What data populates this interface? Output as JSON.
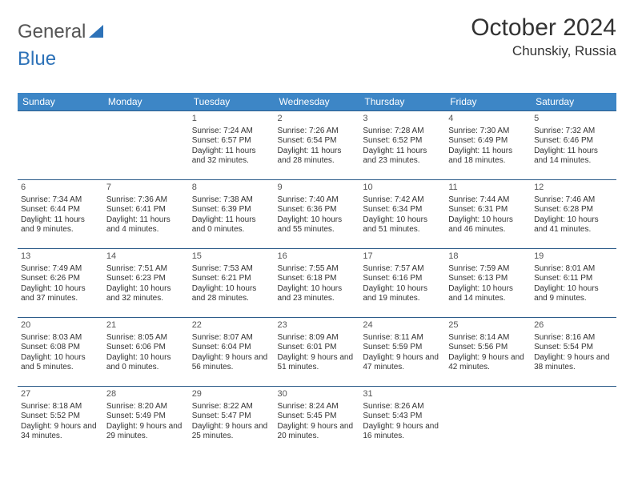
{
  "brand": {
    "part1": "General",
    "part2": "Blue"
  },
  "title": "October 2024",
  "location": "Chunskiy, Russia",
  "weekdays": [
    "Sunday",
    "Monday",
    "Tuesday",
    "Wednesday",
    "Thursday",
    "Friday",
    "Saturday"
  ],
  "colors": {
    "header_bg": "#3d86c6",
    "header_text": "#ffffff",
    "cell_border": "#2d5c8a",
    "body_text": "#333333",
    "brand_blue": "#2d72b8",
    "brand_gray": "#555555"
  },
  "cells": [
    [
      null,
      null,
      {
        "day": "1",
        "sunrise": "Sunrise: 7:24 AM",
        "sunset": "Sunset: 6:57 PM",
        "daylight": "Daylight: 11 hours and 32 minutes."
      },
      {
        "day": "2",
        "sunrise": "Sunrise: 7:26 AM",
        "sunset": "Sunset: 6:54 PM",
        "daylight": "Daylight: 11 hours and 28 minutes."
      },
      {
        "day": "3",
        "sunrise": "Sunrise: 7:28 AM",
        "sunset": "Sunset: 6:52 PM",
        "daylight": "Daylight: 11 hours and 23 minutes."
      },
      {
        "day": "4",
        "sunrise": "Sunrise: 7:30 AM",
        "sunset": "Sunset: 6:49 PM",
        "daylight": "Daylight: 11 hours and 18 minutes."
      },
      {
        "day": "5",
        "sunrise": "Sunrise: 7:32 AM",
        "sunset": "Sunset: 6:46 PM",
        "daylight": "Daylight: 11 hours and 14 minutes."
      }
    ],
    [
      {
        "day": "6",
        "sunrise": "Sunrise: 7:34 AM",
        "sunset": "Sunset: 6:44 PM",
        "daylight": "Daylight: 11 hours and 9 minutes."
      },
      {
        "day": "7",
        "sunrise": "Sunrise: 7:36 AM",
        "sunset": "Sunset: 6:41 PM",
        "daylight": "Daylight: 11 hours and 4 minutes."
      },
      {
        "day": "8",
        "sunrise": "Sunrise: 7:38 AM",
        "sunset": "Sunset: 6:39 PM",
        "daylight": "Daylight: 11 hours and 0 minutes."
      },
      {
        "day": "9",
        "sunrise": "Sunrise: 7:40 AM",
        "sunset": "Sunset: 6:36 PM",
        "daylight": "Daylight: 10 hours and 55 minutes."
      },
      {
        "day": "10",
        "sunrise": "Sunrise: 7:42 AM",
        "sunset": "Sunset: 6:34 PM",
        "daylight": "Daylight: 10 hours and 51 minutes."
      },
      {
        "day": "11",
        "sunrise": "Sunrise: 7:44 AM",
        "sunset": "Sunset: 6:31 PM",
        "daylight": "Daylight: 10 hours and 46 minutes."
      },
      {
        "day": "12",
        "sunrise": "Sunrise: 7:46 AM",
        "sunset": "Sunset: 6:28 PM",
        "daylight": "Daylight: 10 hours and 41 minutes."
      }
    ],
    [
      {
        "day": "13",
        "sunrise": "Sunrise: 7:49 AM",
        "sunset": "Sunset: 6:26 PM",
        "daylight": "Daylight: 10 hours and 37 minutes."
      },
      {
        "day": "14",
        "sunrise": "Sunrise: 7:51 AM",
        "sunset": "Sunset: 6:23 PM",
        "daylight": "Daylight: 10 hours and 32 minutes."
      },
      {
        "day": "15",
        "sunrise": "Sunrise: 7:53 AM",
        "sunset": "Sunset: 6:21 PM",
        "daylight": "Daylight: 10 hours and 28 minutes."
      },
      {
        "day": "16",
        "sunrise": "Sunrise: 7:55 AM",
        "sunset": "Sunset: 6:18 PM",
        "daylight": "Daylight: 10 hours and 23 minutes."
      },
      {
        "day": "17",
        "sunrise": "Sunrise: 7:57 AM",
        "sunset": "Sunset: 6:16 PM",
        "daylight": "Daylight: 10 hours and 19 minutes."
      },
      {
        "day": "18",
        "sunrise": "Sunrise: 7:59 AM",
        "sunset": "Sunset: 6:13 PM",
        "daylight": "Daylight: 10 hours and 14 minutes."
      },
      {
        "day": "19",
        "sunrise": "Sunrise: 8:01 AM",
        "sunset": "Sunset: 6:11 PM",
        "daylight": "Daylight: 10 hours and 9 minutes."
      }
    ],
    [
      {
        "day": "20",
        "sunrise": "Sunrise: 8:03 AM",
        "sunset": "Sunset: 6:08 PM",
        "daylight": "Daylight: 10 hours and 5 minutes."
      },
      {
        "day": "21",
        "sunrise": "Sunrise: 8:05 AM",
        "sunset": "Sunset: 6:06 PM",
        "daylight": "Daylight: 10 hours and 0 minutes."
      },
      {
        "day": "22",
        "sunrise": "Sunrise: 8:07 AM",
        "sunset": "Sunset: 6:04 PM",
        "daylight": "Daylight: 9 hours and 56 minutes."
      },
      {
        "day": "23",
        "sunrise": "Sunrise: 8:09 AM",
        "sunset": "Sunset: 6:01 PM",
        "daylight": "Daylight: 9 hours and 51 minutes."
      },
      {
        "day": "24",
        "sunrise": "Sunrise: 8:11 AM",
        "sunset": "Sunset: 5:59 PM",
        "daylight": "Daylight: 9 hours and 47 minutes."
      },
      {
        "day": "25",
        "sunrise": "Sunrise: 8:14 AM",
        "sunset": "Sunset: 5:56 PM",
        "daylight": "Daylight: 9 hours and 42 minutes."
      },
      {
        "day": "26",
        "sunrise": "Sunrise: 8:16 AM",
        "sunset": "Sunset: 5:54 PM",
        "daylight": "Daylight: 9 hours and 38 minutes."
      }
    ],
    [
      {
        "day": "27",
        "sunrise": "Sunrise: 8:18 AM",
        "sunset": "Sunset: 5:52 PM",
        "daylight": "Daylight: 9 hours and 34 minutes."
      },
      {
        "day": "28",
        "sunrise": "Sunrise: 8:20 AM",
        "sunset": "Sunset: 5:49 PM",
        "daylight": "Daylight: 9 hours and 29 minutes."
      },
      {
        "day": "29",
        "sunrise": "Sunrise: 8:22 AM",
        "sunset": "Sunset: 5:47 PM",
        "daylight": "Daylight: 9 hours and 25 minutes."
      },
      {
        "day": "30",
        "sunrise": "Sunrise: 8:24 AM",
        "sunset": "Sunset: 5:45 PM",
        "daylight": "Daylight: 9 hours and 20 minutes."
      },
      {
        "day": "31",
        "sunrise": "Sunrise: 8:26 AM",
        "sunset": "Sunset: 5:43 PM",
        "daylight": "Daylight: 9 hours and 16 minutes."
      },
      null,
      null
    ]
  ]
}
